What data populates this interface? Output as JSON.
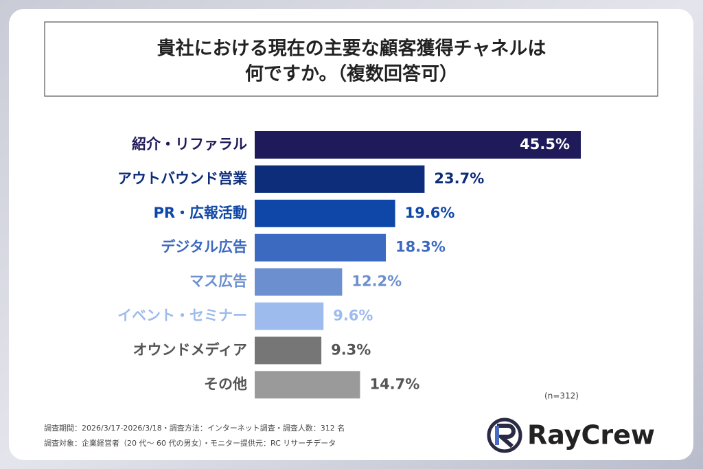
{
  "chart_data": {
    "type": "bar",
    "orientation": "horizontal",
    "title_lines": [
      "貴社における現在の主要な顧客獲得チャネルは",
      "何ですか。（複数回答可）"
    ],
    "categories": [
      "紹介・リファラル",
      "アウトバウンド営業",
      "PR・広報活動",
      "デジタル広告",
      "マス広告",
      "イベント・セミナー",
      "オウンドメディア",
      "その他"
    ],
    "values": [
      45.5,
      23.7,
      19.6,
      18.3,
      12.2,
      9.6,
      9.3,
      14.7
    ],
    "value_labels": [
      "45.5%",
      "23.7%",
      "19.6%",
      "18.3%",
      "12.2%",
      "9.6%",
      "9.3%",
      "14.7%"
    ],
    "colors": [
      "#1f1a5a",
      "#0d2d7a",
      "#0f47a8",
      "#3c6ac0",
      "#6b8fcf",
      "#9dbbed",
      "#767676",
      "#9a9a9a"
    ],
    "text_colors": [
      "#1f1a5a",
      "#0d2d7a",
      "#0f47a8",
      "#3c6ac0",
      "#6b8fcf",
      "#9dbbed",
      "#555555",
      "#555555"
    ],
    "sample_note": "(n=312)",
    "footnotes": [
      "調査期間：2026/3/17-2026/3/18・調査方法：インターネット調査・調査人数：312 名",
      "調査対象：企業経営者（20 代〜 60 代の男女）・モニター提供元：RC リサーチデータ"
    ],
    "brand": "RayCrew"
  }
}
